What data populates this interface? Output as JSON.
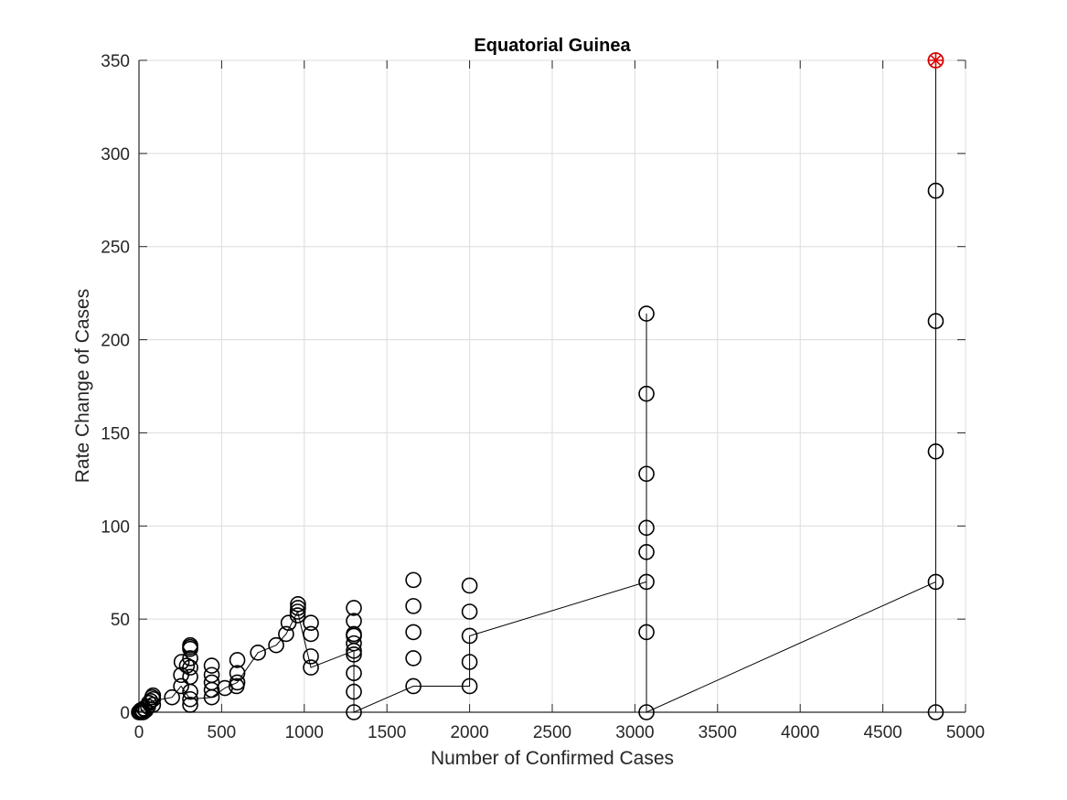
{
  "chart_data": {
    "type": "scatter",
    "title": "Equatorial Guinea",
    "xlabel": "Number of Confirmed Cases",
    "ylabel": "Rate Change of Cases",
    "xlim": [
      0,
      5000
    ],
    "ylim": [
      0,
      350
    ],
    "xticks": [
      0,
      500,
      1000,
      1500,
      2000,
      2500,
      3000,
      3500,
      4000,
      4500,
      5000
    ],
    "yticks": [
      0,
      50,
      100,
      150,
      200,
      250,
      300,
      350
    ],
    "grid": true,
    "colors": {
      "series": "#000000",
      "highlight": "#e00000",
      "grid": "#dcdcdc",
      "axis": "#262626"
    },
    "series": [
      {
        "marker": "circle",
        "line": true,
        "points": [
          [
            0,
            0
          ],
          [
            5,
            0
          ],
          [
            10,
            1
          ],
          [
            15,
            0
          ],
          [
            20,
            1
          ],
          [
            25,
            0
          ],
          [
            30,
            2
          ],
          [
            40,
            1
          ],
          [
            55,
            3
          ],
          [
            60,
            5
          ],
          [
            70,
            6
          ],
          [
            80,
            8
          ],
          [
            85,
            4
          ],
          [
            85,
            9
          ],
          [
            85,
            7
          ],
          [
            200,
            8
          ],
          [
            255,
            14
          ],
          [
            255,
            20
          ],
          [
            258,
            27
          ],
          [
            290,
            25
          ],
          [
            310,
            4
          ],
          [
            310,
            7
          ],
          [
            310,
            11
          ],
          [
            310,
            19
          ],
          [
            310,
            24
          ],
          [
            310,
            29
          ],
          [
            310,
            34
          ],
          [
            310,
            35
          ],
          [
            310,
            36
          ],
          [
            440,
            8
          ],
          [
            440,
            12
          ],
          [
            440,
            16
          ],
          [
            440,
            20
          ],
          [
            440,
            25
          ],
          [
            520,
            13
          ],
          [
            590,
            14
          ],
          [
            595,
            16
          ],
          [
            595,
            21
          ],
          [
            595,
            28
          ],
          [
            720,
            32
          ],
          [
            830,
            36
          ],
          [
            890,
            42
          ],
          [
            905,
            48
          ],
          [
            960,
            52
          ],
          [
            960,
            54
          ],
          [
            962,
            56
          ],
          [
            962,
            58
          ],
          [
            1040,
            24
          ],
          [
            1040,
            30
          ],
          [
            1040,
            42
          ],
          [
            1040,
            48
          ],
          [
            1300,
            0
          ],
          [
            1300,
            11
          ],
          [
            1300,
            21
          ],
          [
            1300,
            31
          ],
          [
            1300,
            33
          ],
          [
            1300,
            37
          ],
          [
            1300,
            41
          ],
          [
            1300,
            42
          ],
          [
            1300,
            49
          ],
          [
            1300,
            56
          ],
          [
            1660,
            14
          ],
          [
            1660,
            29
          ],
          [
            1660,
            43
          ],
          [
            1660,
            57
          ],
          [
            1660,
            71
          ],
          [
            2000,
            14
          ],
          [
            2000,
            27
          ],
          [
            2000,
            41
          ],
          [
            2000,
            54
          ],
          [
            2000,
            68
          ],
          [
            3070,
            0
          ],
          [
            3070,
            43
          ],
          [
            3070,
            70
          ],
          [
            3070,
            86
          ],
          [
            3070,
            99
          ],
          [
            3070,
            128
          ],
          [
            3070,
            171
          ],
          [
            3070,
            214
          ],
          [
            4820,
            0
          ],
          [
            4820,
            70
          ],
          [
            4820,
            140
          ],
          [
            4820,
            210
          ],
          [
            4820,
            280
          ],
          [
            4820,
            350
          ]
        ],
        "line_path": [
          [
            0,
            0
          ],
          [
            20,
            1
          ],
          [
            40,
            1
          ],
          [
            60,
            5
          ],
          [
            80,
            6
          ],
          [
            200,
            8
          ],
          [
            255,
            14
          ],
          [
            310,
            7
          ],
          [
            440,
            8
          ],
          [
            520,
            13
          ],
          [
            595,
            16
          ],
          [
            720,
            32
          ],
          [
            830,
            36
          ],
          [
            890,
            42
          ],
          [
            960,
            54
          ],
          [
            1040,
            24
          ],
          [
            1300,
            33
          ],
          [
            1300,
            0
          ],
          [
            1660,
            14
          ],
          [
            2000,
            14
          ],
          [
            2000,
            41
          ],
          [
            3070,
            70
          ],
          [
            3070,
            214
          ],
          [
            3070,
            0
          ],
          [
            4820,
            70
          ],
          [
            4820,
            350
          ],
          [
            4820,
            0
          ]
        ]
      }
    ],
    "highlight_point": [
      4820,
      350
    ]
  }
}
